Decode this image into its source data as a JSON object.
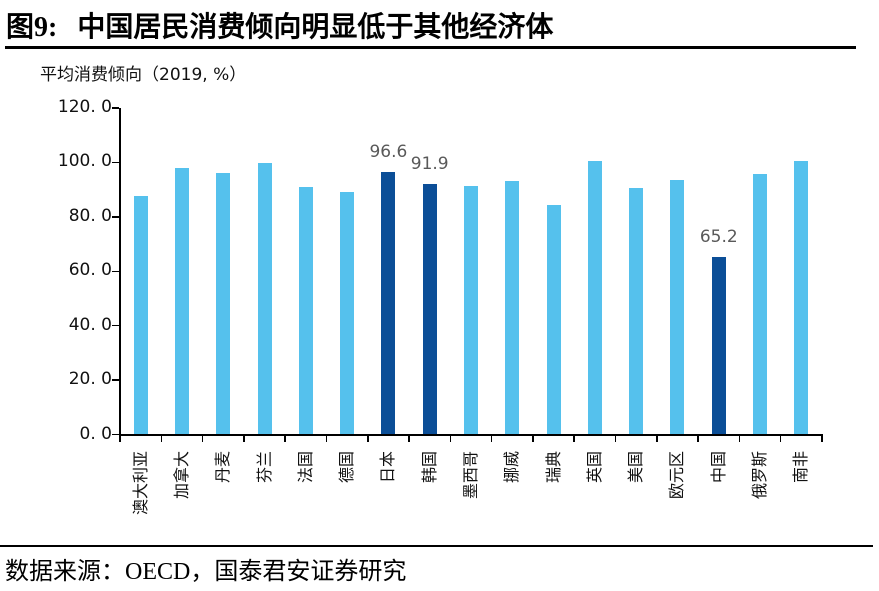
{
  "header": {
    "title_prefix": "图9:",
    "title": "中国居民消费倾向明显低于其他经济体"
  },
  "chart_data": {
    "type": "bar",
    "title": "平均消费倾向（2019, %）",
    "xlabel": "",
    "ylabel": "",
    "ylim": [
      0,
      120
    ],
    "ytick_values": [
      0,
      20,
      40,
      60,
      80,
      100,
      120
    ],
    "ytick_labels": [
      "0. 0",
      "20. 0",
      "40. 0",
      "60. 0",
      "80. 0",
      "100. 0",
      "120. 0"
    ],
    "grid": false,
    "legend_position": "none",
    "categories": [
      "澳大利亚",
      "加拿大",
      "丹麦",
      "芬兰",
      "法国",
      "德国",
      "日本",
      "韩国",
      "墨西哥",
      "挪威",
      "瑞典",
      "英国",
      "美国",
      "欧元区",
      "中国",
      "俄罗斯",
      "南非"
    ],
    "values": [
      87.5,
      98.0,
      96.0,
      99.7,
      91.0,
      89.2,
      96.6,
      91.9,
      91.5,
      93.0,
      84.3,
      100.4,
      90.5,
      93.4,
      65.2,
      95.7,
      100.4
    ],
    "highlighted_categories": [
      "日本",
      "韩国",
      "中国"
    ],
    "data_labels": [
      {
        "category": "日本",
        "text": "96.6"
      },
      {
        "category": "韩国",
        "text": "91.9"
      },
      {
        "category": "中国",
        "text": "65.2"
      }
    ],
    "colors": {
      "bar_default": "#55C1ED",
      "bar_highlight": "#0B4E97",
      "data_label": "#595959",
      "axis": "#000000"
    }
  },
  "footer": {
    "source": "数据来源：OECD，国泰君安证券研究"
  }
}
